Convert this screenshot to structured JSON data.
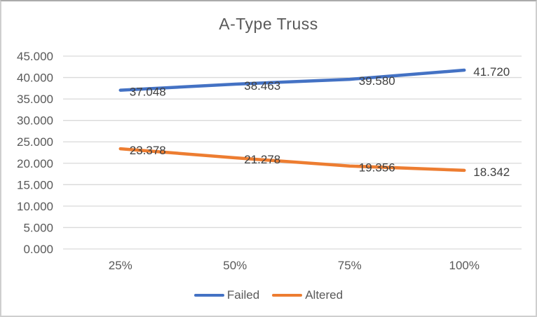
{
  "window": {
    "background": "#FFFFFF",
    "border_color": "#CFCFCF"
  },
  "chart_data": {
    "type": "line",
    "title": "A-Type Truss",
    "categories": [
      "25%",
      "50%",
      "75%",
      "100%"
    ],
    "series": [
      {
        "name": "Failed",
        "color": "#4472C4",
        "values": [
          37.048,
          38.463,
          39.58,
          41.72
        ],
        "labels": [
          "37.048",
          "38.463",
          "39.580",
          "41.720"
        ]
      },
      {
        "name": "Altered",
        "color": "#ED7D31",
        "values": [
          23.378,
          21.278,
          19.356,
          18.342
        ],
        "labels": [
          "23.378",
          "21.278",
          "19.356",
          "18.342"
        ]
      }
    ],
    "xlabel": "",
    "ylabel": "",
    "ylim": [
      0,
      45
    ],
    "ytick_step": 5,
    "ytick_labels": [
      "0.000",
      "5.000",
      "10.000",
      "15.000",
      "20.000",
      "25.000",
      "30.000",
      "35.000",
      "40.000",
      "45.000"
    ],
    "grid": true,
    "gridline_color": "#D9D9D9",
    "legend_position": "bottom",
    "data_label_position": "right"
  },
  "colors": {
    "axis_text": "#595959",
    "data_label_text": "#404040",
    "title_text": "#595959",
    "legend_text": "#595959"
  }
}
